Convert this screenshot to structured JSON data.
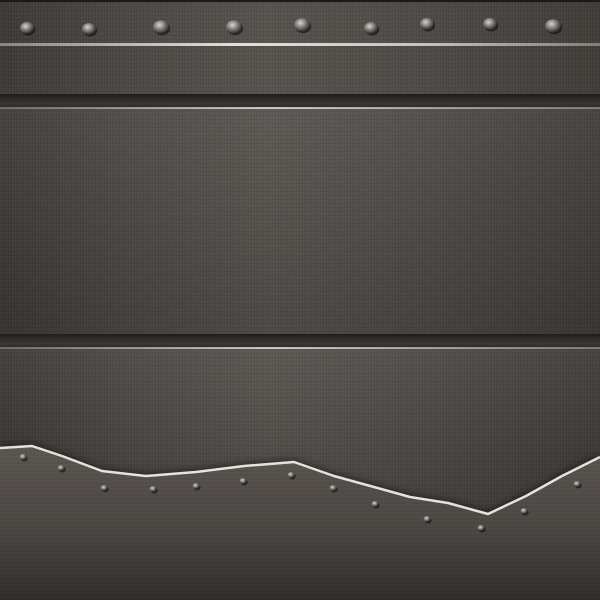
{
  "scene": {
    "kind": "brushed-metal-texture",
    "colors": {
      "metal_dark": "#3b3733",
      "metal_light": "#55504b",
      "groove": "#2e2d2c",
      "edge_highlight": "#e8e5e1",
      "rivet_light": "#c9c6c2",
      "rivet_dark": "#2a2826"
    },
    "top_rivet_count": 9,
    "lower_plate_rivet_count": 13
  }
}
